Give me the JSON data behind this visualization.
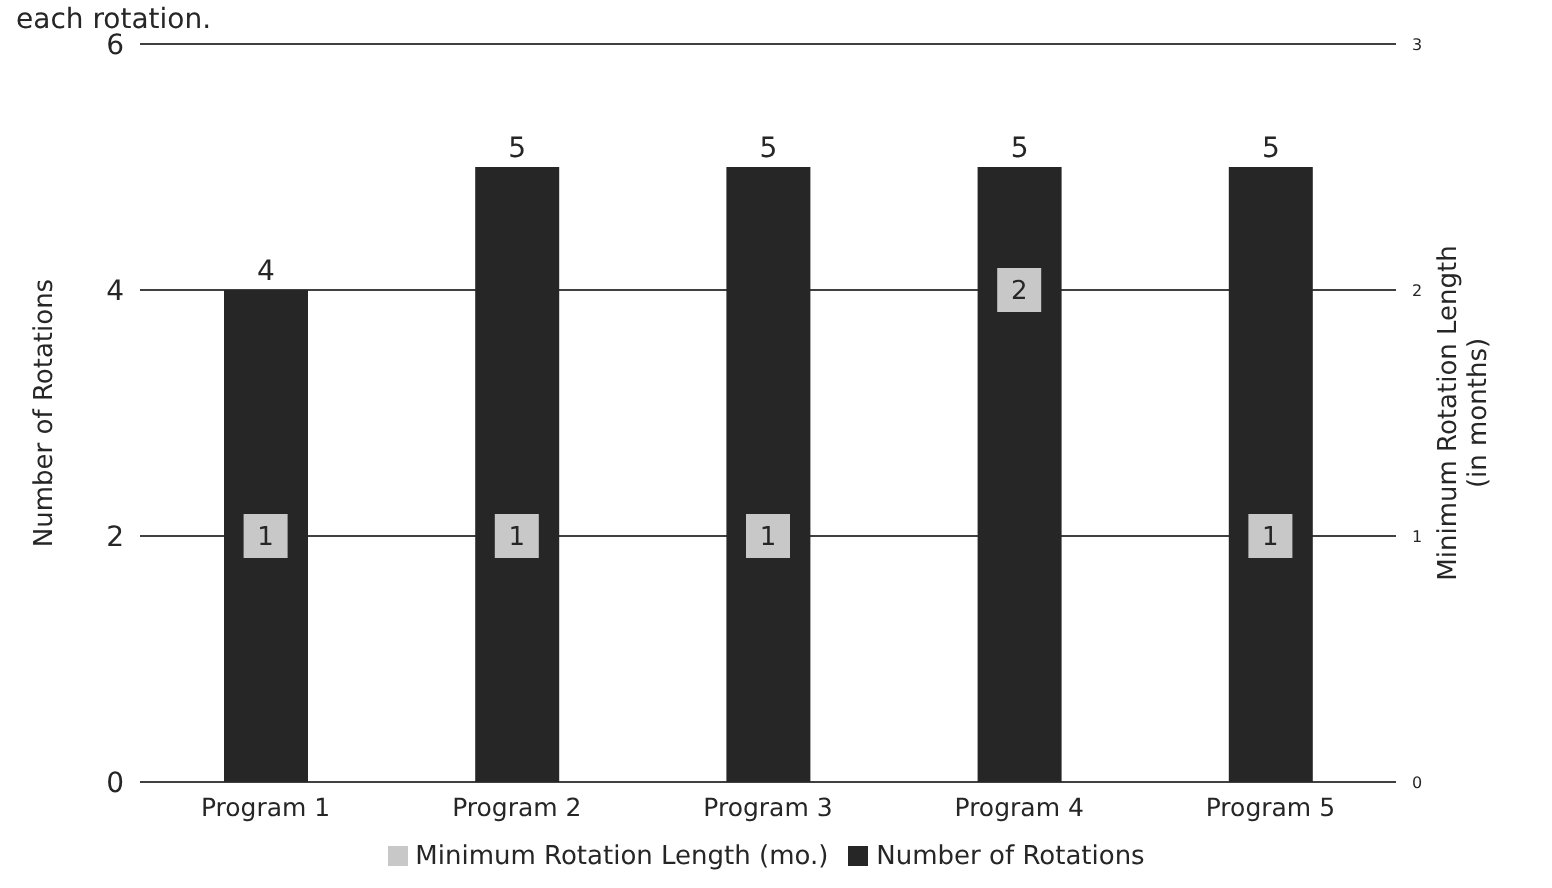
{
  "chart_data": {
    "type": "bar",
    "title": "each rotation.",
    "categories": [
      "Program 1",
      "Program 2",
      "Program 3",
      "Program 4",
      "Program 5"
    ],
    "series": [
      {
        "name": "Number of Rotations",
        "color": "#262626",
        "values": [
          4,
          5,
          5,
          5,
          5
        ]
      },
      {
        "name": "Minimum Rotation Length (mo.)",
        "type": "scatter",
        "axis": "y2",
        "marker": "square",
        "color": "#c8c8c8",
        "values": [
          1,
          1,
          1,
          2,
          1
        ]
      }
    ],
    "ylabel": "Number of Rotations",
    "y2label": "Minimum Rotation Length\n(in months)",
    "ylim": [
      0,
      6
    ],
    "yticks": [
      0,
      2,
      4,
      6
    ],
    "y2lim": [
      0,
      3
    ],
    "y2ticks": [
      0,
      1,
      2,
      3
    ],
    "grid": "y",
    "legend": "bottom",
    "data_labels": true
  }
}
